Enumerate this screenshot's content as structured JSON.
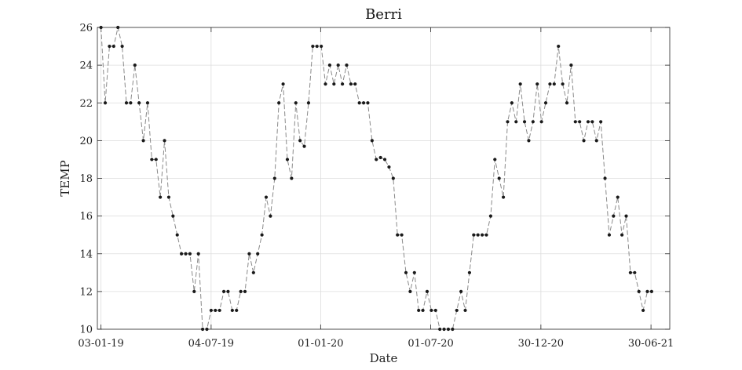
{
  "chart_data": {
    "type": "line",
    "title": "Berri",
    "xlabel": "Date",
    "ylabel": "TEMP",
    "ylim": [
      10,
      26
    ],
    "yticks": [
      10,
      12,
      14,
      16,
      18,
      20,
      22,
      24,
      26
    ],
    "xlim": [
      "2018-12-28",
      "2021-07-31"
    ],
    "xticks": [
      {
        "date": "2019-01-03",
        "label": "03-01-19"
      },
      {
        "date": "2019-07-04",
        "label": "04-07-19"
      },
      {
        "date": "2020-01-01",
        "label": "01-01-20"
      },
      {
        "date": "2020-07-01",
        "label": "01-07-20"
      },
      {
        "date": "2020-12-30",
        "label": "30-12-20"
      },
      {
        "date": "2021-06-30",
        "label": "30-06-21"
      }
    ],
    "grid": true,
    "line_style": "dashed",
    "line_color": "#8a8a8a",
    "marker_color": "#1a1a1a",
    "series": [
      {
        "x": [
          "2019-01-03",
          "2019-01-10",
          "2019-01-17",
          "2019-01-24",
          "2019-01-31",
          "2019-02-07",
          "2019-02-14",
          "2019-02-21",
          "2019-02-28",
          "2019-03-07",
          "2019-03-14",
          "2019-03-21",
          "2019-03-28",
          "2019-04-04",
          "2019-04-11",
          "2019-04-18",
          "2019-04-25",
          "2019-05-02",
          "2019-05-09",
          "2019-05-16",
          "2019-05-23",
          "2019-05-30",
          "2019-06-06",
          "2019-06-13",
          "2019-06-20",
          "2019-06-27",
          "2019-07-04",
          "2019-07-11",
          "2019-07-18",
          "2019-07-25",
          "2019-08-01",
          "2019-08-08",
          "2019-08-15",
          "2019-08-22",
          "2019-08-29",
          "2019-09-05",
          "2019-09-12",
          "2019-09-19",
          "2019-09-26",
          "2019-10-03",
          "2019-10-10",
          "2019-10-17",
          "2019-10-24",
          "2019-10-31",
          "2019-11-07",
          "2019-11-14",
          "2019-11-21",
          "2019-11-28",
          "2019-12-05",
          "2019-12-12",
          "2019-12-19",
          "2019-12-26",
          "2020-01-02",
          "2020-01-09",
          "2020-01-16",
          "2020-01-23",
          "2020-01-30",
          "2020-02-06",
          "2020-02-13",
          "2020-02-20",
          "2020-02-27",
          "2020-03-05",
          "2020-03-12",
          "2020-03-19",
          "2020-03-26",
          "2020-04-02",
          "2020-04-09",
          "2020-04-16",
          "2020-04-23",
          "2020-04-30",
          "2020-05-07",
          "2020-05-14",
          "2020-05-21",
          "2020-05-28",
          "2020-06-04",
          "2020-06-11",
          "2020-06-18",
          "2020-06-25",
          "2020-07-02",
          "2020-07-09",
          "2020-07-16",
          "2020-07-23",
          "2020-07-30",
          "2020-08-06",
          "2020-08-13",
          "2020-08-20",
          "2020-08-27",
          "2020-09-03",
          "2020-09-10",
          "2020-09-17",
          "2020-09-24",
          "2020-10-01",
          "2020-10-08",
          "2020-10-15",
          "2020-10-22",
          "2020-10-29",
          "2020-11-05",
          "2020-11-12",
          "2020-11-19",
          "2020-11-26",
          "2020-12-03",
          "2020-12-10",
          "2020-12-17",
          "2020-12-24",
          "2020-12-31",
          "2021-01-07",
          "2021-01-14",
          "2021-01-21",
          "2021-01-28",
          "2021-02-04",
          "2021-02-11",
          "2021-02-18",
          "2021-02-25",
          "2021-03-04",
          "2021-03-11",
          "2021-03-18",
          "2021-03-25",
          "2021-04-01",
          "2021-04-08",
          "2021-04-15",
          "2021-04-22",
          "2021-04-29",
          "2021-05-06",
          "2021-05-13",
          "2021-05-20",
          "2021-05-27",
          "2021-06-03",
          "2021-06-10",
          "2021-06-17",
          "2021-06-24",
          "2021-07-01"
        ],
        "y": [
          26,
          22,
          25,
          25,
          26,
          25,
          22,
          22,
          24,
          22,
          20,
          22,
          19,
          19,
          17,
          20,
          17,
          16,
          15,
          14,
          14,
          14,
          12,
          14,
          10,
          10,
          11,
          11,
          11,
          12,
          12,
          11,
          11,
          12,
          12,
          14,
          13,
          14,
          15,
          17,
          16,
          18,
          22,
          23,
          19,
          18,
          22,
          20,
          19.7,
          22,
          25,
          25,
          25,
          23,
          24,
          23,
          24,
          23,
          24,
          23,
          23,
          22,
          22,
          22,
          20,
          19,
          19.1,
          19,
          18.6,
          18,
          15,
          15,
          13,
          12,
          13,
          11,
          11,
          12,
          11,
          11,
          10,
          10,
          10,
          10,
          11,
          12,
          11,
          13,
          15,
          15,
          15,
          15,
          16,
          19,
          18,
          17,
          21,
          22,
          21,
          23,
          21,
          20,
          21,
          23,
          21,
          22,
          23,
          23,
          25,
          23,
          22,
          24,
          21,
          21,
          20,
          21,
          21,
          20,
          21,
          18,
          15,
          16,
          17,
          15,
          16,
          13,
          13,
          12,
          11,
          12,
          12
        ]
      }
    ]
  }
}
